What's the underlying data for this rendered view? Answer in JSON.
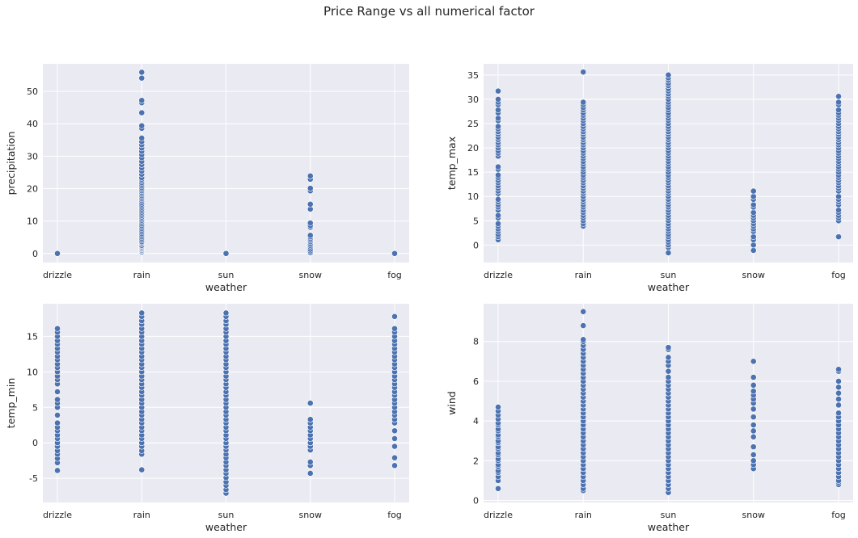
{
  "figure": {
    "suptitle": "Price Range vs all numerical factor",
    "background": "#ffffff",
    "axes_background": "#eaeaf2",
    "grid_color": "#ffffff",
    "marker_color": "#4c72b0",
    "marker_edge": "#ffffff"
  },
  "chart_data": [
    {
      "type": "scatter",
      "title": "",
      "xlabel": "weather",
      "ylabel": "precipitation",
      "categories": [
        "drizzle",
        "rain",
        "sun",
        "snow",
        "fog"
      ],
      "ylim": [
        -2.8,
        58.5
      ],
      "yticks": [
        0,
        10,
        20,
        30,
        40,
        50
      ],
      "grid": true,
      "points": {
        "drizzle": [
          0
        ],
        "rain": [
          0.3,
          0.5,
          0.8,
          1.0,
          1.3,
          1.5,
          1.8,
          2.0,
          2.3,
          2.5,
          3.0,
          3.3,
          3.6,
          4.1,
          4.6,
          5.1,
          5.6,
          6.1,
          6.6,
          7.1,
          7.6,
          8.1,
          8.6,
          9.1,
          9.7,
          10.2,
          10.7,
          11.2,
          11.7,
          12.2,
          12.7,
          13.2,
          13.7,
          14.2,
          14.7,
          15.2,
          15.7,
          16.3,
          16.8,
          17.3,
          17.8,
          18.3,
          18.8,
          19.3,
          19.8,
          20.3,
          20.8,
          21.3,
          21.8,
          22.4,
          22.9,
          23.4,
          24.4,
          25.4,
          26.4,
          27.4,
          28.4,
          29.5,
          30.5,
          31.5,
          32.5,
          33.5,
          34.5,
          35.6,
          38.6,
          39.4,
          43.4,
          46.5,
          47.2,
          54.1,
          55.9
        ],
        "sun": [
          0
        ],
        "snow": [
          0.3,
          0.8,
          1.3,
          2.0,
          2.5,
          3.0,
          3.6,
          4.1,
          4.6,
          5.1,
          5.6,
          8.1,
          8.6,
          9.4,
          13.7,
          15.2,
          19.3,
          20.1,
          22.9,
          23.9
        ],
        "fog": [
          0
        ]
      }
    },
    {
      "type": "scatter",
      "title": "",
      "xlabel": "weather",
      "ylabel": "temp_max",
      "categories": [
        "drizzle",
        "rain",
        "sun",
        "snow",
        "fog"
      ],
      "ylim": [
        -3.6,
        37.3
      ],
      "yticks": [
        0,
        5,
        10,
        15,
        20,
        25,
        30,
        35
      ],
      "grid": true,
      "points": {
        "drizzle": [
          1.1,
          1.7,
          2.2,
          2.8,
          3.3,
          3.9,
          4.4,
          5.6,
          6.1,
          7.2,
          7.8,
          8.3,
          8.9,
          9.4,
          10.6,
          11.1,
          11.7,
          12.2,
          12.8,
          13.3,
          13.9,
          14.4,
          15.6,
          16.1,
          18.3,
          18.9,
          19.4,
          20.0,
          20.6,
          21.1,
          21.7,
          22.2,
          22.8,
          23.3,
          23.9,
          24.4,
          25.6,
          26.1,
          27.2,
          27.8,
          28.9,
          29.4,
          30.0,
          31.7
        ],
        "rain": [
          3.9,
          4.4,
          5.0,
          5.6,
          6.1,
          6.7,
          7.2,
          7.8,
          8.3,
          8.9,
          9.4,
          10.0,
          10.6,
          11.1,
          11.7,
          12.2,
          12.8,
          13.3,
          13.9,
          14.4,
          15.0,
          15.6,
          16.1,
          16.7,
          17.2,
          17.8,
          18.3,
          18.9,
          19.4,
          20.0,
          20.6,
          21.1,
          21.7,
          22.2,
          22.8,
          23.3,
          23.9,
          24.4,
          25.0,
          25.6,
          26.1,
          26.7,
          27.2,
          27.8,
          28.3,
          28.9,
          29.4,
          35.6
        ],
        "sun": [
          -1.6,
          -0.5,
          0,
          0.6,
          1.1,
          1.7,
          2.2,
          2.8,
          3.3,
          3.9,
          4.4,
          5.0,
          5.6,
          6.1,
          6.7,
          7.2,
          7.8,
          8.3,
          8.9,
          9.4,
          10.0,
          10.6,
          11.1,
          11.7,
          12.2,
          12.8,
          13.3,
          13.9,
          14.4,
          15.0,
          15.6,
          16.1,
          16.7,
          17.2,
          17.8,
          18.3,
          18.9,
          19.4,
          20.0,
          20.6,
          21.1,
          21.7,
          22.2,
          22.8,
          23.3,
          23.9,
          24.4,
          25.0,
          25.6,
          26.1,
          26.7,
          27.2,
          27.8,
          28.3,
          28.9,
          29.4,
          30.0,
          30.6,
          31.1,
          31.7,
          32.2,
          32.8,
          33.3,
          33.9,
          34.4,
          35.0
        ],
        "snow": [
          -1.1,
          0,
          1.1,
          1.7,
          2.8,
          3.3,
          3.9,
          4.4,
          5.0,
          5.6,
          6.1,
          6.7,
          7.8,
          8.3,
          9.4,
          10.0,
          11.1
        ],
        "fog": [
          1.7,
          5.0,
          5.6,
          6.1,
          6.7,
          7.2,
          8.3,
          8.9,
          9.4,
          10.0,
          11.1,
          11.7,
          12.2,
          12.8,
          13.3,
          13.9,
          14.4,
          15.0,
          15.6,
          16.1,
          16.7,
          17.2,
          17.8,
          18.3,
          18.9,
          19.4,
          20.0,
          20.6,
          21.1,
          21.7,
          22.2,
          22.8,
          23.3,
          23.9,
          24.4,
          25.0,
          25.6,
          26.1,
          26.7,
          27.2,
          27.8,
          28.9,
          29.4,
          30.6
        ]
      }
    },
    {
      "type": "scatter",
      "title": "",
      "xlabel": "weather",
      "ylabel": "temp_min",
      "categories": [
        "drizzle",
        "rain",
        "sun",
        "snow",
        "fog"
      ],
      "ylim": [
        -8.4,
        19.6
      ],
      "yticks": [
        -5,
        0,
        5,
        10,
        15
      ],
      "grid": true,
      "points": {
        "drizzle": [
          -3.9,
          -2.8,
          -2.2,
          -1.6,
          -1.1,
          -0.5,
          0,
          0.6,
          1.1,
          1.7,
          2.2,
          2.8,
          3.9,
          5.0,
          5.6,
          6.1,
          7.2,
          8.3,
          8.9,
          9.4,
          10.0,
          10.6,
          11.1,
          11.7,
          12.2,
          12.8,
          13.3,
          13.9,
          14.4,
          15.0,
          15.6,
          16.1
        ],
        "rain": [
          -3.8,
          -1.6,
          -1.1,
          -0.5,
          0,
          0.6,
          1.1,
          1.7,
          2.2,
          2.8,
          3.3,
          3.9,
          4.4,
          5.0,
          5.6,
          6.1,
          6.7,
          7.2,
          7.8,
          8.3,
          8.9,
          9.4,
          10.0,
          10.6,
          11.1,
          11.7,
          12.2,
          12.8,
          13.3,
          13.9,
          14.4,
          15.0,
          15.6,
          16.1,
          16.7,
          17.2,
          17.8,
          18.3
        ],
        "sun": [
          -7.1,
          -6.6,
          -6.0,
          -5.5,
          -4.9,
          -4.3,
          -3.8,
          -3.2,
          -2.7,
          -2.1,
          -1.6,
          -1.0,
          -0.5,
          0,
          0.6,
          1.1,
          1.7,
          2.2,
          2.8,
          3.3,
          3.9,
          4.4,
          5.0,
          5.6,
          6.1,
          6.7,
          7.2,
          7.8,
          8.3,
          8.9,
          9.4,
          10.0,
          10.6,
          11.1,
          11.7,
          12.2,
          12.8,
          13.3,
          13.9,
          14.4,
          15.0,
          15.6,
          16.1,
          16.7,
          17.2,
          17.8,
          18.3
        ],
        "snow": [
          -4.3,
          -3.2,
          -2.7,
          -1.0,
          -0.5,
          0,
          0.6,
          1.1,
          1.7,
          2.2,
          2.8,
          3.3,
          5.6
        ],
        "fog": [
          -3.2,
          -2.1,
          -0.5,
          0.6,
          1.7,
          2.8,
          3.3,
          3.9,
          4.4,
          5.0,
          5.6,
          6.1,
          6.7,
          7.2,
          7.8,
          8.3,
          8.9,
          9.4,
          10.0,
          10.6,
          11.1,
          11.7,
          12.2,
          12.8,
          13.3,
          13.9,
          14.4,
          15.0,
          15.6,
          16.1,
          17.8
        ]
      }
    },
    {
      "type": "scatter",
      "title": "",
      "xlabel": "weather",
      "ylabel": "wind",
      "categories": [
        "drizzle",
        "rain",
        "sun",
        "snow",
        "fog"
      ],
      "ylim": [
        -0.1,
        9.9
      ],
      "yticks": [
        0,
        2,
        4,
        6,
        8
      ],
      "grid": true,
      "points": {
        "drizzle": [
          0.6,
          1.0,
          1.2,
          1.4,
          1.5,
          1.7,
          1.8,
          2.0,
          2.1,
          2.3,
          2.4,
          2.6,
          2.7,
          2.9,
          3.0,
          3.2,
          3.3,
          3.5,
          3.6,
          3.8,
          3.9,
          4.1,
          4.3,
          4.5,
          4.7
        ],
        "rain": [
          0.5,
          0.6,
          0.8,
          1.0,
          1.2,
          1.4,
          1.6,
          1.8,
          2.0,
          2.2,
          2.4,
          2.6,
          2.8,
          3.0,
          3.2,
          3.4,
          3.6,
          3.8,
          4.0,
          4.2,
          4.4,
          4.6,
          4.8,
          5.0,
          5.2,
          5.4,
          5.6,
          5.8,
          6.0,
          6.2,
          6.4,
          6.6,
          6.8,
          7.0,
          7.2,
          7.4,
          7.6,
          7.8,
          8.0,
          8.1,
          8.8,
          9.5
        ],
        "sun": [
          0.4,
          0.6,
          0.8,
          1.0,
          1.2,
          1.4,
          1.6,
          1.8,
          2.0,
          2.2,
          2.4,
          2.6,
          2.8,
          3.0,
          3.2,
          3.4,
          3.6,
          3.8,
          4.0,
          4.2,
          4.4,
          4.6,
          4.8,
          5.0,
          5.2,
          5.4,
          5.6,
          5.8,
          6.0,
          6.2,
          6.5,
          6.8,
          7.0,
          7.2,
          7.6,
          7.7
        ],
        "snow": [
          1.6,
          1.8,
          2.0,
          2.3,
          2.7,
          3.2,
          3.5,
          3.8,
          4.2,
          4.6,
          4.9,
          5.1,
          5.3,
          5.5,
          5.8,
          6.2,
          7.0
        ],
        "fog": [
          0.8,
          0.9,
          1.0,
          1.2,
          1.4,
          1.6,
          1.8,
          2.0,
          2.2,
          2.4,
          2.6,
          2.8,
          3.0,
          3.2,
          3.4,
          3.6,
          3.8,
          4.0,
          4.2,
          4.4,
          4.8,
          5.1,
          5.4,
          5.7,
          6.0,
          6.5,
          6.6
        ]
      }
    }
  ]
}
